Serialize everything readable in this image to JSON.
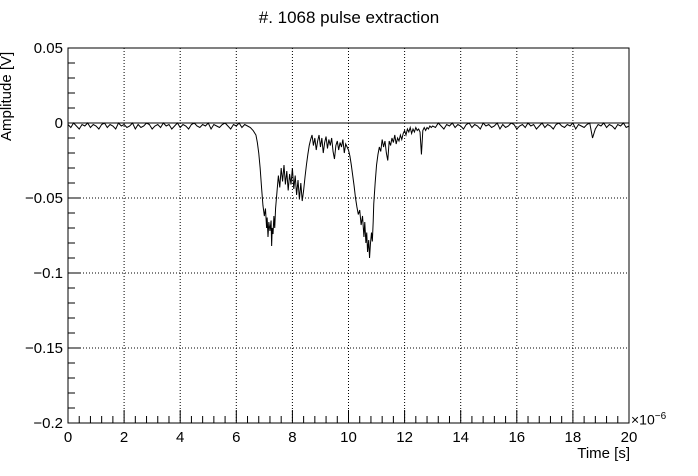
{
  "chart_data": {
    "type": "line",
    "title": "#. 1068 pulse extraction",
    "xlabel": "Time [s]",
    "ylabel": "Amplitude [V]",
    "x_scale_exponent": {
      "mantissa": "×10",
      "exponent": "−6"
    },
    "xlim": [
      0,
      20
    ],
    "ylim": [
      -0.2,
      0.05
    ],
    "x_ticks": [
      0,
      2,
      4,
      6,
      8,
      10,
      12,
      14,
      16,
      18,
      20
    ],
    "x_tick_labels": [
      "0",
      "2",
      "4",
      "6",
      "8",
      "10",
      "12",
      "14",
      "16",
      "18",
      "20"
    ],
    "y_ticks": [
      0.05,
      0,
      -0.05,
      -0.1,
      -0.15,
      -0.2
    ],
    "y_tick_labels": [
      "0.05",
      "0",
      "−0.05",
      "−0.1",
      "−0.15",
      "−0.2"
    ],
    "x_minor_step": 0.4,
    "y_minor_step": 0.01,
    "grid": "dotted",
    "line_color": "#000000",
    "zero_line": 0,
    "x_units_note": "time axis values are in microseconds (×10^-6 s)",
    "points": [
      [
        0.0,
        -0.001
      ],
      [
        0.1,
        -0.003
      ],
      [
        0.2,
        0.0
      ],
      [
        0.3,
        -0.002
      ],
      [
        0.4,
        -0.004
      ],
      [
        0.5,
        -0.001
      ],
      [
        0.6,
        -0.002
      ],
      [
        0.7,
        0.0
      ],
      [
        0.8,
        -0.003
      ],
      [
        0.9,
        -0.001
      ],
      [
        1.0,
        -0.002
      ],
      [
        1.1,
        -0.004
      ],
      [
        1.2,
        -0.001
      ],
      [
        1.3,
        0.0
      ],
      [
        1.4,
        -0.003
      ],
      [
        1.5,
        -0.001
      ],
      [
        1.6,
        -0.002
      ],
      [
        1.7,
        -0.004
      ],
      [
        1.8,
        0.0
      ],
      [
        1.9,
        -0.002
      ],
      [
        2.0,
        -0.001
      ],
      [
        2.1,
        -0.003
      ],
      [
        2.2,
        -0.002
      ],
      [
        2.3,
        0.0
      ],
      [
        2.4,
        -0.004
      ],
      [
        2.5,
        -0.001
      ],
      [
        2.6,
        -0.003
      ],
      [
        2.7,
        -0.002
      ],
      [
        2.8,
        0.0
      ],
      [
        2.9,
        -0.001
      ],
      [
        3.0,
        -0.004
      ],
      [
        3.1,
        -0.002
      ],
      [
        3.2,
        -0.001
      ],
      [
        3.3,
        -0.003
      ],
      [
        3.4,
        0.0
      ],
      [
        3.5,
        -0.002
      ],
      [
        3.6,
        -0.001
      ],
      [
        3.7,
        -0.004
      ],
      [
        3.8,
        -0.002
      ],
      [
        3.9,
        0.0
      ],
      [
        4.0,
        -0.003
      ],
      [
        4.1,
        -0.001
      ],
      [
        4.2,
        -0.002
      ],
      [
        4.3,
        -0.004
      ],
      [
        4.4,
        -0.001
      ],
      [
        4.5,
        0.0
      ],
      [
        4.6,
        -0.002
      ],
      [
        4.7,
        -0.003
      ],
      [
        4.8,
        -0.001
      ],
      [
        4.9,
        -0.002
      ],
      [
        5.0,
        0.0
      ],
      [
        5.1,
        -0.004
      ],
      [
        5.2,
        -0.001
      ],
      [
        5.3,
        -0.002
      ],
      [
        5.4,
        -0.003
      ],
      [
        5.5,
        -0.001
      ],
      [
        5.6,
        0.0
      ],
      [
        5.7,
        -0.002
      ],
      [
        5.8,
        -0.004
      ],
      [
        5.9,
        -0.001
      ],
      [
        6.0,
        -0.002
      ],
      [
        6.1,
        0.0
      ],
      [
        6.2,
        -0.003
      ],
      [
        6.3,
        -0.001
      ],
      [
        6.4,
        -0.002
      ],
      [
        6.5,
        -0.003
      ],
      [
        6.6,
        -0.005
      ],
      [
        6.7,
        -0.008
      ],
      [
        6.75,
        -0.013
      ],
      [
        6.8,
        -0.02
      ],
      [
        6.85,
        -0.03
      ],
      [
        6.9,
        -0.043
      ],
      [
        6.95,
        -0.055
      ],
      [
        7.0,
        -0.062
      ],
      [
        7.04,
        -0.057
      ],
      [
        7.08,
        -0.07
      ],
      [
        7.1,
        -0.063
      ],
      [
        7.13,
        -0.076
      ],
      [
        7.16,
        -0.066
      ],
      [
        7.2,
        -0.072
      ],
      [
        7.24,
        -0.065
      ],
      [
        7.26,
        -0.082
      ],
      [
        7.28,
        -0.07
      ],
      [
        7.31,
        -0.074
      ],
      [
        7.34,
        -0.062
      ],
      [
        7.37,
        -0.07
      ],
      [
        7.4,
        -0.057
      ],
      [
        7.45,
        -0.046
      ],
      [
        7.5,
        -0.035
      ],
      [
        7.55,
        -0.043
      ],
      [
        7.6,
        -0.03
      ],
      [
        7.65,
        -0.039
      ],
      [
        7.7,
        -0.028
      ],
      [
        7.75,
        -0.041
      ],
      [
        7.8,
        -0.032
      ],
      [
        7.85,
        -0.045
      ],
      [
        7.9,
        -0.034
      ],
      [
        7.95,
        -0.041
      ],
      [
        8.0,
        -0.03
      ],
      [
        8.05,
        -0.044
      ],
      [
        8.1,
        -0.035
      ],
      [
        8.15,
        -0.048
      ],
      [
        8.2,
        -0.038
      ],
      [
        8.25,
        -0.051
      ],
      [
        8.3,
        -0.04
      ],
      [
        8.35,
        -0.052
      ],
      [
        8.4,
        -0.045
      ],
      [
        8.45,
        -0.036
      ],
      [
        8.5,
        -0.028
      ],
      [
        8.55,
        -0.021
      ],
      [
        8.6,
        -0.015
      ],
      [
        8.65,
        -0.011
      ],
      [
        8.7,
        -0.008
      ],
      [
        8.75,
        -0.015
      ],
      [
        8.8,
        -0.01
      ],
      [
        8.85,
        -0.018
      ],
      [
        8.9,
        -0.012
      ],
      [
        8.95,
        -0.008
      ],
      [
        9.0,
        -0.016
      ],
      [
        9.05,
        -0.01
      ],
      [
        9.1,
        -0.02
      ],
      [
        9.15,
        -0.013
      ],
      [
        9.2,
        -0.009
      ],
      [
        9.25,
        -0.017
      ],
      [
        9.3,
        -0.011
      ],
      [
        9.35,
        -0.015
      ],
      [
        9.4,
        -0.01
      ],
      [
        9.45,
        -0.019
      ],
      [
        9.5,
        -0.024
      ],
      [
        9.55,
        -0.015
      ],
      [
        9.6,
        -0.012
      ],
      [
        9.65,
        -0.018
      ],
      [
        9.7,
        -0.013
      ],
      [
        9.75,
        -0.016
      ],
      [
        9.8,
        -0.011
      ],
      [
        9.85,
        -0.02
      ],
      [
        9.9,
        -0.014
      ],
      [
        9.95,
        -0.016
      ],
      [
        10.0,
        -0.018
      ],
      [
        10.05,
        -0.022
      ],
      [
        10.1,
        -0.028
      ],
      [
        10.15,
        -0.035
      ],
      [
        10.2,
        -0.042
      ],
      [
        10.25,
        -0.05
      ],
      [
        10.3,
        -0.056
      ],
      [
        10.35,
        -0.061
      ],
      [
        10.4,
        -0.058
      ],
      [
        10.45,
        -0.068
      ],
      [
        10.5,
        -0.062
      ],
      [
        10.55,
        -0.076
      ],
      [
        10.58,
        -0.066
      ],
      [
        10.62,
        -0.08
      ],
      [
        10.65,
        -0.073
      ],
      [
        10.68,
        -0.086
      ],
      [
        10.72,
        -0.078
      ],
      [
        10.75,
        -0.09
      ],
      [
        10.78,
        -0.081
      ],
      [
        10.82,
        -0.073
      ],
      [
        10.85,
        -0.079
      ],
      [
        10.88,
        -0.066
      ],
      [
        10.9,
        -0.054
      ],
      [
        10.95,
        -0.04
      ],
      [
        11.0,
        -0.028
      ],
      [
        11.05,
        -0.021
      ],
      [
        11.1,
        -0.016
      ],
      [
        11.15,
        -0.019
      ],
      [
        11.2,
        -0.011
      ],
      [
        11.25,
        -0.016
      ],
      [
        11.3,
        -0.012
      ],
      [
        11.35,
        -0.02
      ],
      [
        11.4,
        -0.025
      ],
      [
        11.45,
        -0.012
      ],
      [
        11.5,
        -0.015
      ],
      [
        11.55,
        -0.01
      ],
      [
        11.6,
        -0.013
      ],
      [
        11.65,
        -0.008
      ],
      [
        11.7,
        -0.014
      ],
      [
        11.75,
        -0.01
      ],
      [
        11.8,
        -0.012
      ],
      [
        11.85,
        -0.008
      ],
      [
        11.9,
        -0.011
      ],
      [
        11.95,
        -0.007
      ],
      [
        12.0,
        -0.005
      ],
      [
        12.05,
        -0.008
      ],
      [
        12.1,
        -0.004
      ],
      [
        12.15,
        -0.006
      ],
      [
        12.2,
        -0.003
      ],
      [
        12.25,
        -0.007
      ],
      [
        12.3,
        -0.004
      ],
      [
        12.35,
        -0.006
      ],
      [
        12.4,
        -0.003
      ],
      [
        12.45,
        -0.005
      ],
      [
        12.5,
        -0.004
      ],
      [
        12.55,
        -0.006
      ],
      [
        12.6,
        -0.021
      ],
      [
        12.65,
        -0.005
      ],
      [
        12.7,
        -0.003
      ],
      [
        12.75,
        -0.005
      ],
      [
        12.8,
        -0.003
      ],
      [
        12.85,
        -0.004
      ],
      [
        12.9,
        -0.002
      ],
      [
        12.95,
        -0.003
      ],
      [
        13.0,
        -0.002
      ],
      [
        13.1,
        -0.003
      ],
      [
        13.2,
        0.0
      ],
      [
        13.3,
        -0.002
      ],
      [
        13.4,
        -0.004
      ],
      [
        13.5,
        -0.001
      ],
      [
        13.6,
        -0.002
      ],
      [
        13.7,
        0.0
      ],
      [
        13.8,
        -0.003
      ],
      [
        13.9,
        -0.001
      ],
      [
        14.0,
        -0.002
      ],
      [
        14.1,
        -0.004
      ],
      [
        14.2,
        -0.001
      ],
      [
        14.3,
        0.0
      ],
      [
        14.4,
        -0.003
      ],
      [
        14.5,
        -0.001
      ],
      [
        14.6,
        -0.002
      ],
      [
        14.7,
        -0.004
      ],
      [
        14.8,
        0.0
      ],
      [
        14.9,
        -0.002
      ],
      [
        15.0,
        -0.001
      ],
      [
        15.1,
        -0.003
      ],
      [
        15.2,
        -0.002
      ],
      [
        15.3,
        0.0
      ],
      [
        15.4,
        -0.004
      ],
      [
        15.5,
        -0.001
      ],
      [
        15.6,
        -0.003
      ],
      [
        15.7,
        -0.002
      ],
      [
        15.8,
        0.0
      ],
      [
        15.9,
        -0.001
      ],
      [
        16.0,
        -0.004
      ],
      [
        16.1,
        -0.002
      ],
      [
        16.2,
        -0.001
      ],
      [
        16.3,
        -0.003
      ],
      [
        16.4,
        0.0
      ],
      [
        16.5,
        -0.002
      ],
      [
        16.6,
        -0.001
      ],
      [
        16.7,
        -0.004
      ],
      [
        16.8,
        -0.002
      ],
      [
        16.9,
        0.0
      ],
      [
        17.0,
        -0.003
      ],
      [
        17.1,
        -0.001
      ],
      [
        17.2,
        -0.002
      ],
      [
        17.3,
        -0.004
      ],
      [
        17.4,
        -0.001
      ],
      [
        17.5,
        0.0
      ],
      [
        17.6,
        -0.002
      ],
      [
        17.7,
        -0.003
      ],
      [
        17.8,
        -0.001
      ],
      [
        17.9,
        -0.002
      ],
      [
        18.0,
        0.0
      ],
      [
        18.1,
        -0.004
      ],
      [
        18.2,
        -0.001
      ],
      [
        18.3,
        -0.002
      ],
      [
        18.4,
        -0.003
      ],
      [
        18.5,
        -0.001
      ],
      [
        18.6,
        0.0
      ],
      [
        18.7,
        -0.01
      ],
      [
        18.8,
        -0.004
      ],
      [
        18.9,
        -0.001
      ],
      [
        19.0,
        -0.002
      ],
      [
        19.1,
        0.0
      ],
      [
        19.2,
        -0.003
      ],
      [
        19.3,
        -0.001
      ],
      [
        19.4,
        -0.002
      ],
      [
        19.5,
        -0.004
      ],
      [
        19.6,
        -0.001
      ],
      [
        19.7,
        -0.002
      ],
      [
        19.8,
        0.0
      ],
      [
        19.9,
        -0.003
      ],
      [
        20.0,
        -0.002
      ]
    ]
  }
}
